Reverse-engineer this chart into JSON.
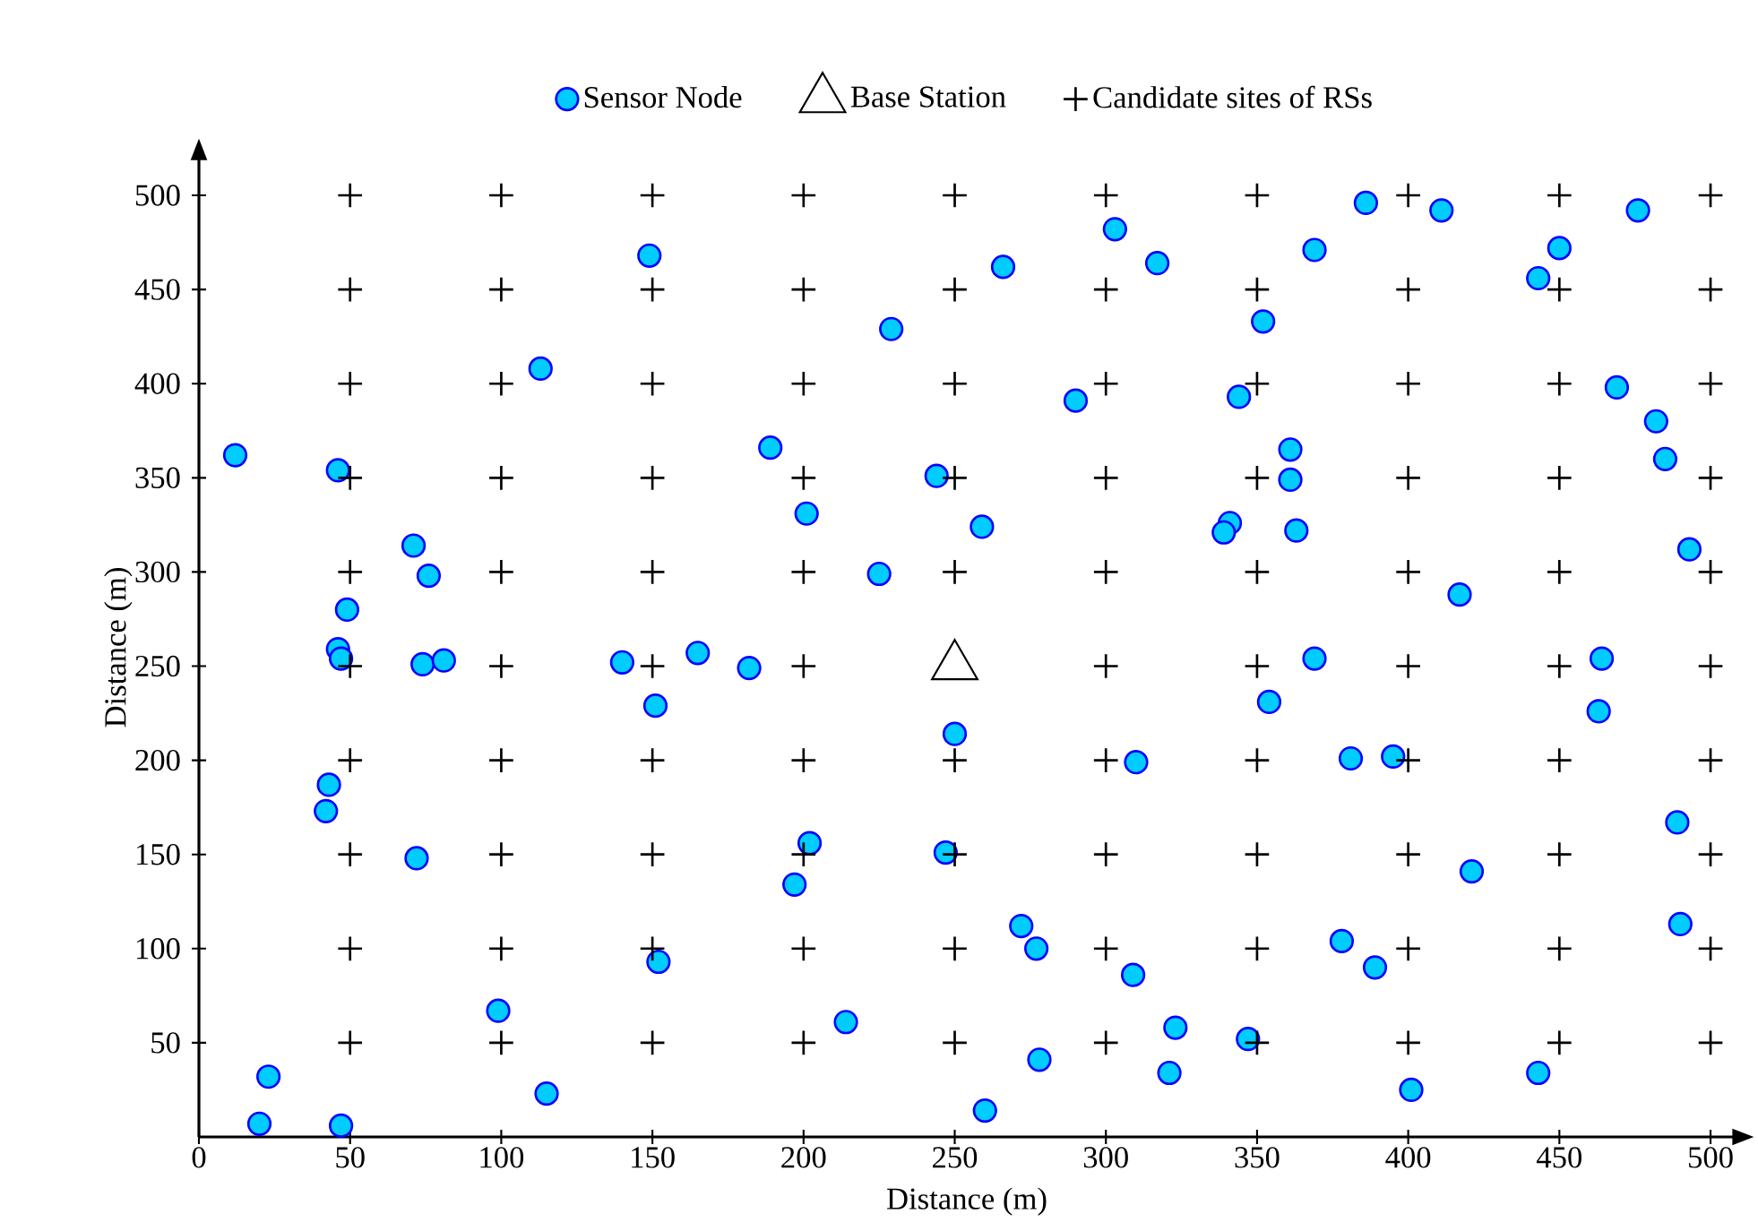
{
  "chart_data": {
    "type": "scatter",
    "xlabel": "Distance (m)",
    "ylabel": "Distance (m)",
    "xlim": [
      0,
      508
    ],
    "ylim": [
      0,
      520
    ],
    "xticks": [
      0,
      50,
      100,
      150,
      200,
      250,
      300,
      350,
      400,
      450,
      500
    ],
    "yticks": [
      50,
      100,
      150,
      200,
      250,
      300,
      350,
      400,
      450,
      500
    ],
    "grid": false,
    "legend": "top",
    "series": [
      {
        "name": "Sensor Node",
        "color": "#00ccff",
        "marker": "circle",
        "x": [
          12,
          46,
          71,
          76,
          49,
          46,
          47,
          74,
          81,
          43,
          42,
          72,
          99,
          23,
          20,
          47,
          115,
          113,
          149,
          140,
          165,
          182,
          151,
          152,
          189,
          201,
          229,
          225,
          244,
          259,
          250,
          202,
          197,
          247,
          214,
          260,
          266,
          290,
          303,
          317,
          272,
          277,
          278,
          309,
          323,
          321,
          310,
          344,
          352,
          369,
          386,
          411,
          476,
          450,
          443,
          361,
          361,
          341,
          339,
          363,
          469,
          482,
          485,
          493,
          417,
          369,
          464,
          354,
          381,
          395,
          463,
          489,
          421,
          490,
          378,
          389,
          347,
          401,
          443
        ],
        "values": [
          362,
          354,
          314,
          298,
          280,
          259,
          254,
          251,
          253,
          187,
          173,
          148,
          67,
          32,
          7,
          6,
          23,
          408,
          468,
          252,
          257,
          249,
          229,
          93,
          366,
          331,
          429,
          299,
          351,
          324,
          214,
          156,
          134,
          151,
          61,
          14,
          462,
          391,
          482,
          464,
          112,
          100,
          41,
          86,
          58,
          34,
          199,
          393,
          433,
          471,
          496,
          492,
          492,
          472,
          456,
          365,
          349,
          326,
          321,
          322,
          398,
          380,
          360,
          312,
          288,
          254,
          254,
          231,
          201,
          202,
          226,
          167,
          141,
          113,
          104,
          90,
          52,
          25,
          34
        ]
      },
      {
        "name": "Base Station",
        "color": "#000000",
        "marker": "triangle",
        "x": [
          250
        ],
        "values": [
          250
        ]
      },
      {
        "name": "Candidate sites of RSs",
        "color": "#000000",
        "marker": "cross",
        "x": [
          50,
          100,
          150,
          200,
          250,
          300,
          350,
          400,
          450,
          500,
          50,
          100,
          150,
          200,
          250,
          300,
          350,
          400,
          450,
          500,
          50,
          100,
          150,
          200,
          250,
          300,
          350,
          400,
          450,
          500,
          50,
          100,
          150,
          200,
          250,
          300,
          350,
          400,
          450,
          500,
          50,
          100,
          150,
          200,
          250,
          300,
          350,
          400,
          450,
          500,
          50,
          100,
          150,
          200,
          300,
          350,
          400,
          450,
          500,
          50,
          100,
          150,
          200,
          250,
          300,
          350,
          400,
          450,
          500,
          50,
          100,
          150,
          200,
          250,
          300,
          350,
          400,
          450,
          500,
          50,
          100,
          150,
          200,
          250,
          300,
          350,
          400,
          450,
          500,
          50,
          100,
          150,
          200,
          250,
          300,
          350,
          400,
          450,
          500
        ],
        "values": [
          500,
          500,
          500,
          500,
          500,
          500,
          500,
          500,
          500,
          500,
          450,
          450,
          450,
          450,
          450,
          450,
          450,
          450,
          450,
          450,
          400,
          400,
          400,
          400,
          400,
          400,
          400,
          400,
          400,
          400,
          350,
          350,
          350,
          350,
          350,
          350,
          350,
          350,
          350,
          350,
          300,
          300,
          300,
          300,
          300,
          300,
          300,
          300,
          300,
          300,
          250,
          250,
          250,
          250,
          250,
          250,
          250,
          250,
          250,
          200,
          200,
          200,
          200,
          200,
          200,
          200,
          200,
          200,
          200,
          150,
          150,
          150,
          150,
          150,
          150,
          150,
          150,
          150,
          150,
          100,
          100,
          100,
          100,
          100,
          100,
          100,
          100,
          100,
          100,
          50,
          50,
          50,
          50,
          50,
          50,
          50,
          50,
          50,
          50
        ]
      }
    ]
  }
}
